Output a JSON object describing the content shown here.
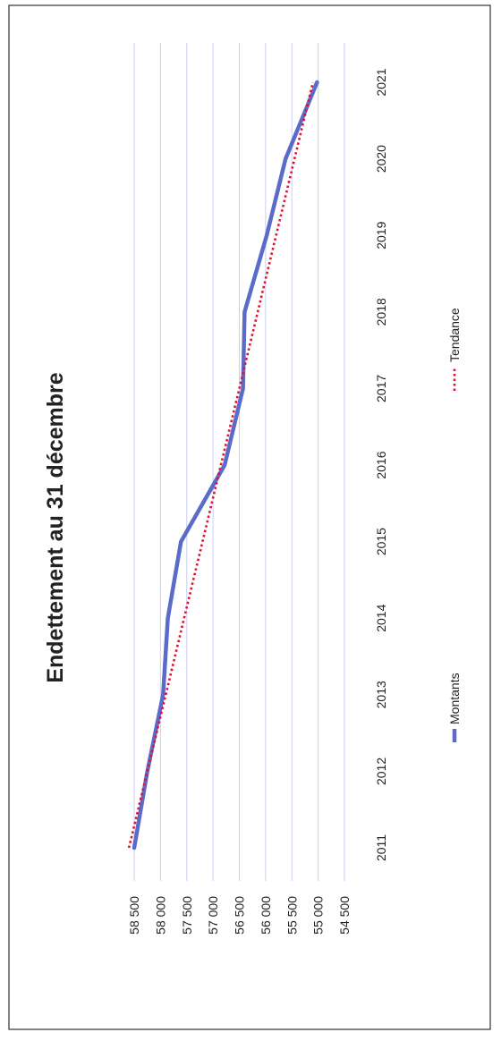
{
  "chart_data": {
    "type": "line",
    "title": "Endettement au 31 décembre",
    "xlabel": "",
    "ylabel": "",
    "categories": [
      "2011",
      "2012",
      "2013",
      "2014",
      "2015",
      "2016",
      "2017",
      "2018",
      "2019",
      "2020",
      "2021"
    ],
    "series": [
      {
        "name": "Montants",
        "values": [
          58500,
          58250,
          57950,
          57860,
          57610,
          56780,
          56430,
          56400,
          55980,
          55620,
          55020
        ],
        "color": "#5b6bc9",
        "style": "solid"
      },
      {
        "name": "Tendance",
        "values": [
          58600,
          58250,
          57900,
          57550,
          57200,
          56850,
          56500,
          56150,
          55800,
          55450,
          55100
        ],
        "color": "#e01030",
        "style": "dotted"
      }
    ],
    "y_ticks": [
      "58 500",
      "58 000",
      "57 500",
      "57 000",
      "56 500",
      "56 000",
      "55 500",
      "55 000",
      "54 500"
    ],
    "y_tick_values": [
      58500,
      58000,
      57500,
      57000,
      56500,
      56000,
      55500,
      55000,
      54500
    ],
    "ylim": [
      54500,
      58500
    ],
    "orientation": "rotated-90-clockwise",
    "grid": true,
    "legend_position": "bottom",
    "gridline_color": "#c9cdef"
  }
}
